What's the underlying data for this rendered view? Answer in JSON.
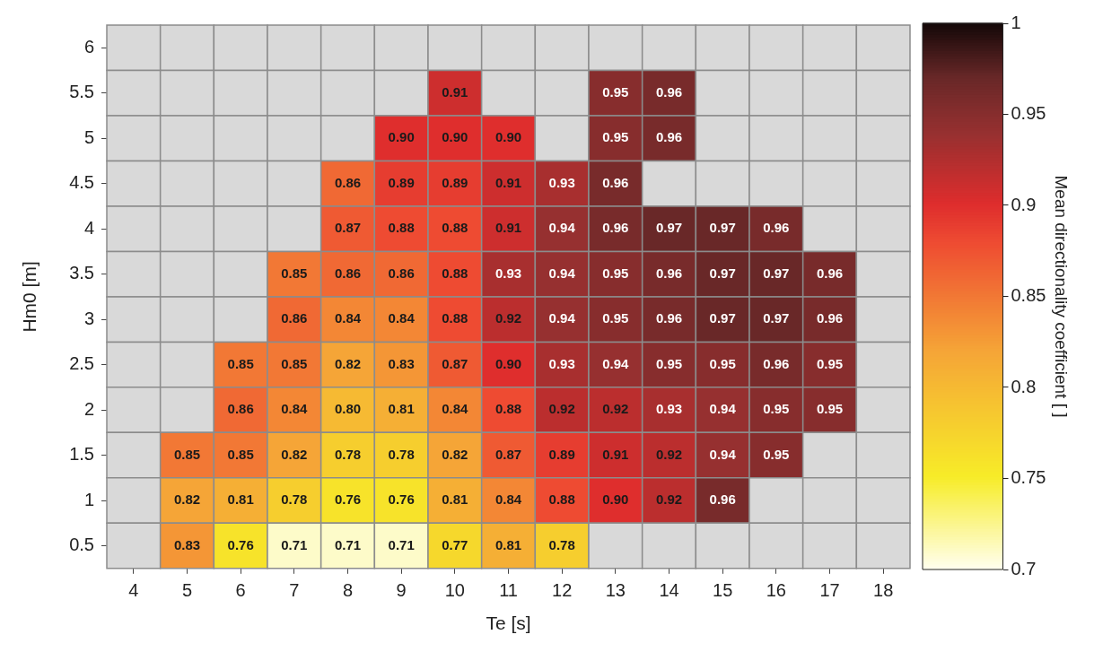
{
  "chart_data": {
    "type": "heatmap",
    "xlabel": "Te [s]",
    "ylabel": "Hm0 [m]",
    "clabel": "Mean directionality coefficient [ ]",
    "categories": [
      "4",
      "5",
      "6",
      "7",
      "8",
      "9",
      "10",
      "11",
      "12",
      "13",
      "14",
      "15",
      "16",
      "17",
      "18"
    ],
    "y_categories": [
      "6",
      "5.5",
      "5",
      "4.5",
      "4",
      "3.5",
      "3",
      "2.5",
      "2",
      "1.5",
      "1",
      "0.5"
    ],
    "cells": [
      [
        null,
        null,
        null,
        null,
        null,
        null,
        null,
        null,
        null,
        null,
        null,
        null,
        null,
        null,
        null
      ],
      [
        null,
        null,
        null,
        null,
        null,
        null,
        0.91,
        null,
        null,
        0.95,
        0.96,
        null,
        null,
        null,
        null
      ],
      [
        null,
        null,
        null,
        null,
        null,
        0.9,
        0.9,
        0.9,
        null,
        0.95,
        0.96,
        null,
        null,
        null,
        null
      ],
      [
        null,
        null,
        null,
        null,
        0.86,
        0.89,
        0.89,
        0.91,
        0.93,
        0.96,
        null,
        null,
        null,
        null,
        null
      ],
      [
        null,
        null,
        null,
        null,
        0.87,
        0.88,
        0.88,
        0.91,
        0.94,
        0.96,
        0.97,
        0.97,
        0.96,
        null,
        null
      ],
      [
        null,
        null,
        null,
        0.85,
        0.86,
        0.86,
        0.88,
        0.93,
        0.94,
        0.95,
        0.96,
        0.97,
        0.97,
        0.96,
        null
      ],
      [
        null,
        null,
        null,
        0.86,
        0.84,
        0.84,
        0.88,
        0.92,
        0.94,
        0.95,
        0.96,
        0.97,
        0.97,
        0.96,
        null
      ],
      [
        null,
        null,
        0.85,
        0.85,
        0.82,
        0.83,
        0.87,
        0.9,
        0.93,
        0.94,
        0.95,
        0.95,
        0.96,
        0.95,
        null
      ],
      [
        null,
        null,
        0.86,
        0.84,
        0.8,
        0.81,
        0.84,
        0.88,
        0.92,
        0.92,
        0.93,
        0.94,
        0.95,
        0.95,
        null
      ],
      [
        null,
        0.85,
        0.85,
        0.82,
        0.78,
        0.78,
        0.82,
        0.87,
        0.89,
        0.91,
        0.92,
        0.94,
        0.95,
        null,
        null
      ],
      [
        null,
        0.82,
        0.81,
        0.78,
        0.76,
        0.76,
        0.81,
        0.84,
        0.88,
        0.9,
        0.92,
        0.96,
        null,
        null,
        null
      ],
      [
        null,
        0.83,
        0.76,
        0.71,
        0.71,
        0.71,
        0.77,
        0.81,
        0.78,
        null,
        null,
        null,
        null,
        null,
        null
      ]
    ],
    "cell_labels": [
      [
        null,
        null,
        null,
        null,
        null,
        null,
        null,
        null,
        null,
        null,
        null,
        null,
        null,
        null,
        null
      ],
      [
        null,
        null,
        null,
        null,
        null,
        null,
        "0.91",
        null,
        null,
        "0.95",
        "0.96",
        null,
        null,
        null,
        null
      ],
      [
        null,
        null,
        null,
        null,
        null,
        "0.90",
        "0.90",
        "0.90",
        null,
        "0.95",
        "0.96",
        null,
        null,
        null,
        null
      ],
      [
        null,
        null,
        null,
        null,
        "0.86",
        "0.89",
        "0.89",
        "0.91",
        "0.93",
        "0.96",
        null,
        null,
        null,
        null,
        null
      ],
      [
        null,
        null,
        null,
        null,
        "0.87",
        "0.88",
        "0.88",
        "0.91",
        "0.94",
        "0.96",
        "0.97",
        "0.97",
        "0.96",
        null,
        null
      ],
      [
        null,
        null,
        null,
        "0.85",
        "0.86",
        "0.86",
        "0.88",
        "0.93",
        "0.94",
        "0.95",
        "0.96",
        "0.97",
        "0.97",
        "0.96",
        null
      ],
      [
        null,
        null,
        null,
        "0.86",
        "0.84",
        "0.84",
        "0.88",
        "0.92",
        "0.94",
        "0.95",
        "0.96",
        "0.97",
        "0.97",
        "0.96",
        null
      ],
      [
        null,
        null,
        "0.85",
        "0.85",
        "0.82",
        "0.83",
        "0.87",
        "0.90",
        "0.93",
        "0.94",
        "0.95",
        "0.95",
        "0.96",
        "0.95",
        null
      ],
      [
        null,
        null,
        "0.86",
        "0.84",
        "0.80",
        "0.81",
        "0.84",
        "0.88",
        "0.92",
        "0.92",
        "0.93",
        "0.94",
        "0.95",
        "0.95",
        null
      ],
      [
        null,
        "0.85",
        "0.85",
        "0.82",
        "0.78",
        "0.78",
        "0.82",
        "0.87",
        "0.89",
        "0.91",
        "0.92",
        "0.94",
        "0.95",
        null,
        null
      ],
      [
        null,
        "0.82",
        "0.81",
        "0.78",
        "0.76",
        "0.76",
        "0.81",
        "0.84",
        "0.88",
        "0.90",
        "0.92",
        "0.96",
        null,
        null,
        null
      ],
      [
        null,
        "0.83",
        "0.76",
        "0.71",
        "0.71",
        "0.71",
        "0.77",
        "0.81",
        "0.78",
        null,
        null,
        null,
        null,
        null,
        null
      ]
    ],
    "clim": [
      0.7,
      1
    ],
    "cticks": [
      0.7,
      0.75,
      0.8,
      0.85,
      0.9,
      0.95,
      1
    ],
    "data_labels": true
  }
}
